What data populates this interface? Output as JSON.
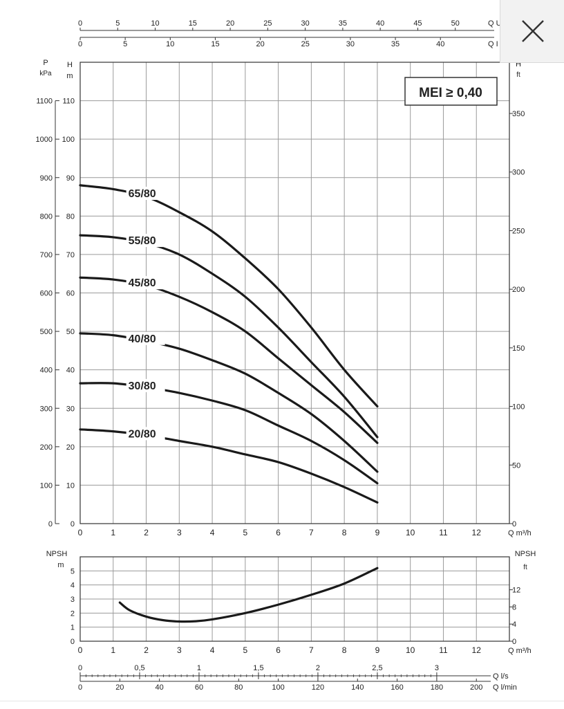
{
  "close_button": {
    "icon": "close-icon"
  },
  "chart_data": [
    {
      "type": "line",
      "title": "",
      "badge": "MEI ≥ 0,40",
      "xlabel": "Q m³/h",
      "xlim": [
        0,
        13
      ],
      "xticks": [
        "0",
        "1",
        "2",
        "3",
        "4",
        "5",
        "6",
        "7",
        "8",
        "9",
        "10",
        "11",
        "12"
      ],
      "ylabel_left": "H m",
      "ylim": [
        0,
        120
      ],
      "yticks": [
        "0",
        "10",
        "20",
        "30",
        "40",
        "50",
        "60",
        "70",
        "80",
        "90",
        "100",
        "110"
      ],
      "p_axis": {
        "label_top": "P",
        "label_unit": "kPa",
        "ticks": [
          "0",
          "100",
          "200",
          "300",
          "400",
          "500",
          "600",
          "700",
          "800",
          "900",
          "1000",
          "1100"
        ]
      },
      "ft_axis": {
        "label": "ft",
        "label_top": "H",
        "ticks": [
          "0",
          "50",
          "100",
          "150",
          "200",
          "250",
          "300",
          "350"
        ]
      },
      "top_axis_1": {
        "label": "Q U",
        "ticks": [
          "0",
          "5",
          "10",
          "15",
          "20",
          "25",
          "30",
          "35",
          "40",
          "45",
          "50"
        ]
      },
      "top_axis_2": {
        "label": "Q I",
        "ticks": [
          "0",
          "5",
          "10",
          "15",
          "20",
          "25",
          "30",
          "35",
          "40"
        ]
      },
      "grid": true,
      "series": [
        {
          "name": "65/80",
          "x": [
            0,
            1,
            2,
            3,
            4,
            5,
            6,
            7,
            8,
            9
          ],
          "values": [
            88,
            87,
            85,
            81,
            76,
            69,
            61,
            51,
            40,
            30.5
          ]
        },
        {
          "name": "55/80",
          "x": [
            0,
            1,
            2,
            3,
            4,
            5,
            6,
            7,
            8,
            9
          ],
          "values": [
            75,
            74.5,
            73,
            70,
            65,
            59,
            51,
            42,
            33,
            22.5
          ]
        },
        {
          "name": "45/80",
          "x": [
            0,
            1,
            2,
            3,
            4,
            5,
            6,
            7,
            8,
            9
          ],
          "values": [
            64,
            63.5,
            62,
            59,
            55,
            50,
            43,
            36,
            29,
            21
          ]
        },
        {
          "name": "40/80",
          "x": [
            0,
            1,
            2,
            3,
            4,
            5,
            6,
            7,
            8,
            9
          ],
          "values": [
            49.5,
            49,
            47.5,
            45.5,
            42.5,
            39,
            34,
            28.5,
            21.5,
            13.5
          ]
        },
        {
          "name": "30/80",
          "x": [
            0,
            1,
            2,
            3,
            4,
            5,
            6,
            7,
            8,
            9
          ],
          "values": [
            36.5,
            36.5,
            35.5,
            34,
            32,
            29.5,
            25.5,
            21.5,
            16.5,
            10.5
          ]
        },
        {
          "name": "20/80",
          "x": [
            0,
            1,
            2,
            3,
            4,
            5,
            6,
            7,
            8,
            9
          ],
          "values": [
            24.5,
            24,
            23,
            21.5,
            20,
            18,
            16,
            13,
            9.5,
            5.5
          ]
        }
      ]
    },
    {
      "type": "line",
      "title": "",
      "xlabel": "Q m³/h",
      "xlim": [
        0,
        13
      ],
      "xticks": [
        "0",
        "1",
        "2",
        "3",
        "4",
        "5",
        "6",
        "7",
        "8",
        "9",
        "10",
        "11",
        "12"
      ],
      "ylabel_left": "NPSH",
      "ylabel_left_unit": "m",
      "ylim": [
        0,
        6
      ],
      "yticks": [
        "0",
        "1",
        "2",
        "3",
        "4",
        "5"
      ],
      "ylabel_right": "NPSH",
      "ylabel_right_unit": "ft",
      "ft_ticks": [
        "0",
        "4",
        "8",
        "12"
      ],
      "grid": true,
      "series": [
        {
          "name": "",
          "x": [
            1.2,
            1.5,
            2,
            2.5,
            3,
            3.5,
            4,
            5,
            6,
            7,
            8,
            9
          ],
          "values": [
            2.75,
            2.2,
            1.75,
            1.5,
            1.4,
            1.42,
            1.55,
            2.0,
            2.6,
            3.3,
            4.1,
            5.2
          ]
        }
      ]
    }
  ],
  "bottom_axes": {
    "ls_label": "Q l/s",
    "ls_ticks": [
      "0",
      "0,5",
      "1",
      "1,5",
      "2",
      "2,5",
      "3"
    ],
    "lmin_label": "Q l/min",
    "lmin_ticks": [
      "0",
      "20",
      "40",
      "60",
      "80",
      "100",
      "120",
      "140",
      "160",
      "180",
      "200"
    ]
  },
  "colors": {
    "curve": "#1a1a1a",
    "grid": "#9a9a9a",
    "frame": "#333333"
  }
}
